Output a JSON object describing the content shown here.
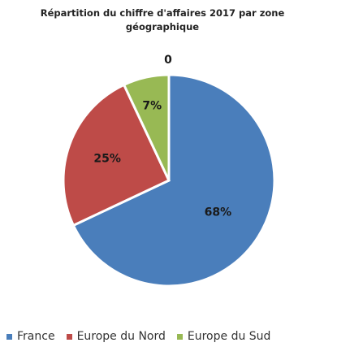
{
  "chart_data": {
    "type": "pie",
    "title": "Répartition du chiffre d'affaires 2017 par zone géographique",
    "categories": [
      "France",
      "Europe du Nord",
      "Europe du Sud"
    ],
    "values": [
      68,
      25,
      7
    ],
    "data_labels": [
      "68%",
      "25%",
      "7%"
    ],
    "extra_label": "0",
    "colors": [
      "#4a7ebb",
      "#be4b48",
      "#98b954"
    ],
    "legend_position": "bottom"
  }
}
